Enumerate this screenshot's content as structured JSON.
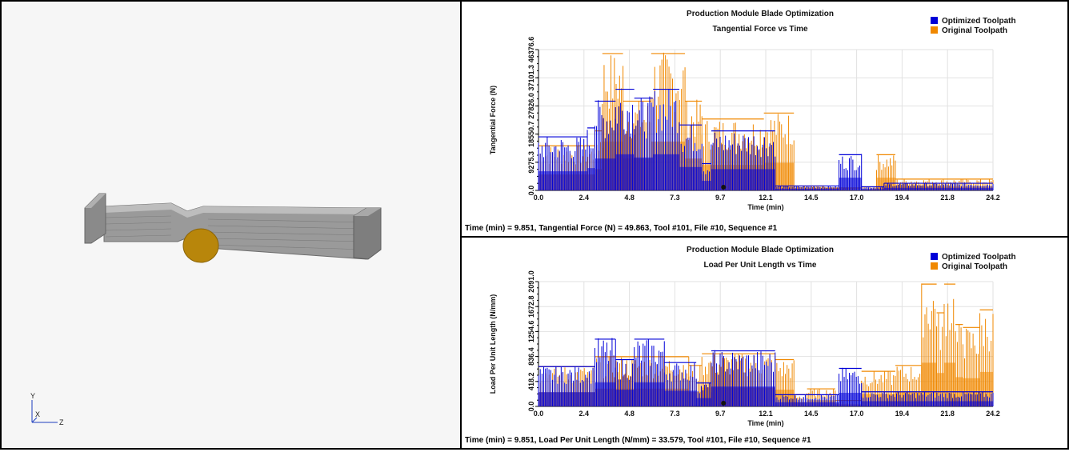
{
  "viewport": {
    "triad_labels": {
      "y": "Y",
      "x": "X",
      "z": "Z"
    },
    "part_color": "#8e8e8e",
    "tool_color": "#b8860b"
  },
  "charts_header": "Production Module Blade Optimization",
  "chart_data": [
    {
      "type": "line",
      "title": "Production Module Blade Optimization",
      "subtitle": "Tangential Force vs Time",
      "xlabel": "Time (min)",
      "ylabel": "Tangential Force (N)",
      "x_ticks": [
        "0.0",
        "2.4",
        "4.8",
        "7.3",
        "9.7",
        "12.1",
        "14.5",
        "17.0",
        "19.4",
        "21.8",
        "24.2"
      ],
      "y_ticks": [
        "0.0",
        "9275.3",
        "18550.7",
        "27826.0",
        "37101.3",
        "46376.6"
      ],
      "xlim": [
        0,
        24.2
      ],
      "ylim": [
        0,
        46376.6
      ],
      "grid": true,
      "legend_position": "top-right",
      "series": [
        {
          "name": "Optimized Toolpath",
          "color": "#0000d8",
          "segments": [
            [
              0,
              2.6,
              18000
            ],
            [
              2.6,
              3.0,
              21000
            ],
            [
              3.0,
              4.1,
              30000
            ],
            [
              4.1,
              5.1,
              34000
            ],
            [
              5.1,
              6.1,
              31000
            ],
            [
              6.1,
              7.5,
              34000
            ],
            [
              7.5,
              8.7,
              22000
            ],
            [
              8.7,
              9.2,
              9000
            ],
            [
              9.2,
              12.6,
              20000
            ],
            [
              12.6,
              16.0,
              1500
            ],
            [
              16.0,
              17.2,
              12000
            ],
            [
              17.2,
              18.4,
              1200
            ],
            [
              18.4,
              24.2,
              2400
            ]
          ]
        },
        {
          "name": "Original Toolpath",
          "color": "#f08800",
          "segments": [
            [
              0,
              3.0,
              15000
            ],
            [
              3.0,
              3.4,
              20000
            ],
            [
              3.4,
              4.5,
              46000
            ],
            [
              4.5,
              6.0,
              30000
            ],
            [
              6.0,
              7.8,
              46000
            ],
            [
              7.8,
              8.7,
              30000
            ],
            [
              8.7,
              12.0,
              24000
            ],
            [
              12.0,
              13.6,
              26000
            ],
            [
              13.6,
              15.2,
              1500
            ],
            [
              15.2,
              17.2,
              800
            ],
            [
              17.2,
              18.0,
              1200
            ],
            [
              18.0,
              19.0,
              12000
            ],
            [
              19.0,
              24.2,
              3800
            ]
          ]
        }
      ]
    },
    {
      "type": "line",
      "title": "Production Module Blade Optimization",
      "subtitle": "Load Per Unit Length vs Time",
      "xlabel": "Time (min)",
      "ylabel": "Load Per Unit Length (N/mm)",
      "x_ticks": [
        "0.0",
        "2.4",
        "4.8",
        "7.3",
        "9.7",
        "12.1",
        "14.5",
        "17.0",
        "19.4",
        "21.8",
        "24.2"
      ],
      "y_ticks": [
        "0.0",
        "418.2",
        "836.4",
        "1254.6",
        "1672.8",
        "2091.0"
      ],
      "xlim": [
        0,
        24.2
      ],
      "ylim": [
        0,
        2091.0
      ],
      "grid": true,
      "legend_position": "top-right",
      "series": [
        {
          "name": "Optimized Toolpath",
          "color": "#0000d8",
          "segments": [
            [
              0,
              2.6,
              680
            ],
            [
              2.6,
              3.0,
              680
            ],
            [
              3.0,
              4.1,
              1150
            ],
            [
              4.1,
              5.1,
              800
            ],
            [
              5.1,
              6.7,
              1150
            ],
            [
              6.7,
              8.4,
              750
            ],
            [
              8.4,
              9.2,
              400
            ],
            [
              9.2,
              12.6,
              950
            ],
            [
              12.6,
              16.0,
              200
            ],
            [
              16.0,
              17.2,
              650
            ],
            [
              17.2,
              24.2,
              250
            ]
          ]
        },
        {
          "name": "Original Toolpath",
          "color": "#f08800",
          "segments": [
            [
              0,
              3.0,
              680
            ],
            [
              3.0,
              8.0,
              850
            ],
            [
              8.0,
              8.7,
              700
            ],
            [
              8.7,
              12.6,
              900
            ],
            [
              12.6,
              13.6,
              800
            ],
            [
              13.6,
              14.3,
              200
            ],
            [
              14.3,
              15.8,
              300
            ],
            [
              15.8,
              17.2,
              100
            ],
            [
              17.2,
              19.0,
              600
            ],
            [
              19.0,
              20.4,
              700
            ],
            [
              20.4,
              21.2,
              2091
            ],
            [
              21.2,
              21.6,
              1600
            ],
            [
              21.6,
              22.2,
              2091
            ],
            [
              22.2,
              22.6,
              1400
            ],
            [
              22.6,
              23.5,
              1350
            ],
            [
              23.5,
              24.2,
              1650
            ]
          ]
        }
      ]
    }
  ],
  "readouts": [
    "Time (min) = 9.851,  Tangential Force (N) = 49.863,  Tool #101,  File #10,  Sequence #1",
    "Time (min) = 9.851,  Load Per Unit Length (N/mm) = 33.579,  Tool #101,  File #10,  Sequence #1"
  ]
}
